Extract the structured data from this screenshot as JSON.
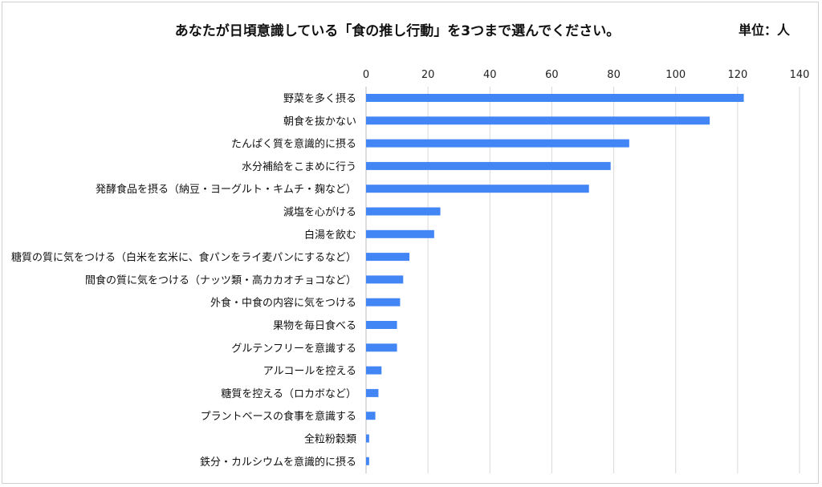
{
  "chart_data": {
    "type": "bar",
    "orientation": "horizontal",
    "title": "あなたが日頃意識している「食の推し行動」を3つまで選んでください。",
    "unit_label": "単位：人",
    "xlabel": "",
    "ylabel": "",
    "xlim": [
      0,
      140
    ],
    "xticks": [
      0,
      20,
      40,
      60,
      80,
      100,
      120,
      140
    ],
    "grid": true,
    "bar_color": "#4285f4",
    "categories": [
      "野菜を多く摂る",
      "朝食を抜かない",
      "たんぱく質を意識的に摂る",
      "水分補給をこまめに行う",
      "発酵食品を摂る（納豆・ヨーグルト・キムチ・麹など）",
      "減塩を心がける",
      "白湯を飲む",
      "糖質の質に気をつける（白米を玄米に、食パンをライ麦パンにするなど）",
      "間食の質に気をつける（ナッツ類・高カカオチョコなど）",
      "外食・中食の内容に気をつける",
      "果物を毎日食べる",
      "グルテンフリーを意識する",
      "アルコールを控える",
      "糖質を控える（ロカボなど）",
      "プラントベースの食事を意識する",
      "全粒粉穀類",
      "鉄分・カルシウムを意識的に摂る"
    ],
    "values": [
      122,
      111,
      85,
      79,
      72,
      24,
      22,
      14,
      12,
      11,
      10,
      10,
      5,
      4,
      3,
      1,
      1
    ]
  }
}
